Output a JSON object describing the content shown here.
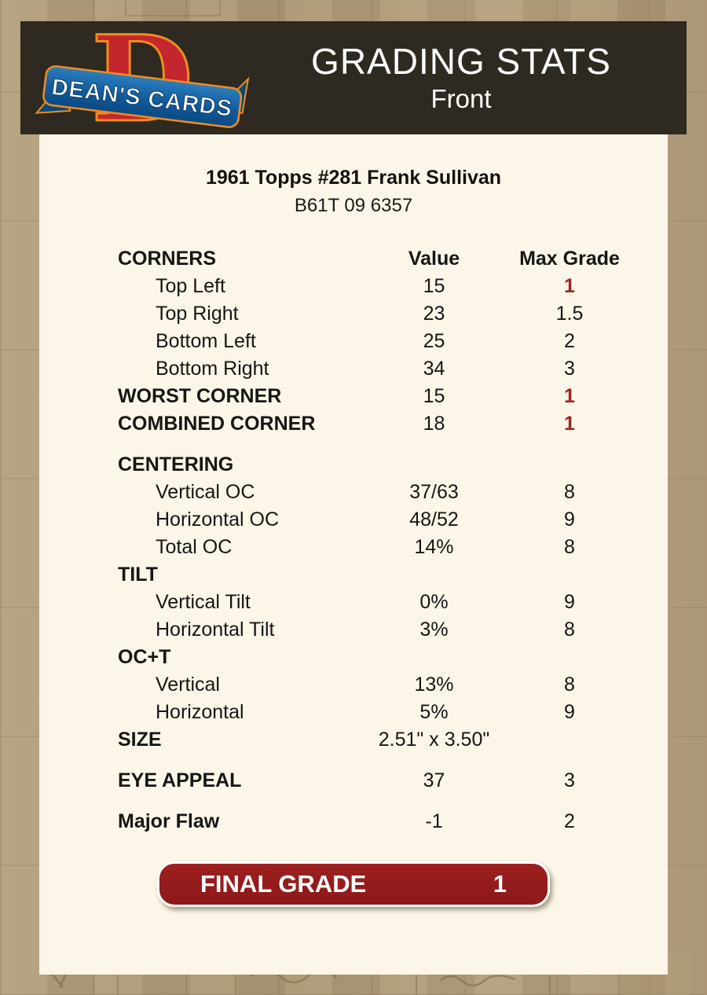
{
  "header": {
    "title": "GRADING STATS",
    "front_label": "Front",
    "logo": {
      "monogram": "D",
      "brand": "DEAN'S CARDS"
    }
  },
  "card": {
    "title": "1961 Topps #281 Frank Sullivan",
    "serial": "B61T 09 6357",
    "table": {
      "rows": [
        {
          "label": "CORNERS",
          "value": "Value",
          "max": "Max Grade",
          "style": "header"
        },
        {
          "label": "Top Left",
          "value": "15",
          "max": "1",
          "style": "item",
          "max_red": true
        },
        {
          "label": "Top Right",
          "value": "23",
          "max": "1.5",
          "style": "item"
        },
        {
          "label": "Bottom Left",
          "value": "25",
          "max": "2",
          "style": "item"
        },
        {
          "label": "Bottom Right",
          "value": "34",
          "max": "3",
          "style": "item"
        },
        {
          "label": "WORST CORNER",
          "value": "15",
          "max": "1",
          "style": "section",
          "max_red": true
        },
        {
          "label": "COMBINED CORNER",
          "value": "18",
          "max": "1",
          "style": "section",
          "max_red": true
        },
        {
          "spacer": true
        },
        {
          "label": "CENTERING",
          "value": "",
          "max": "",
          "style": "section"
        },
        {
          "label": "Vertical OC",
          "value": "37/63",
          "max": "8",
          "style": "item"
        },
        {
          "label": "Horizontal OC",
          "value": "48/52",
          "max": "9",
          "style": "item"
        },
        {
          "label": "Total OC",
          "value": "14%",
          "max": "8",
          "style": "item"
        },
        {
          "label": "TILT",
          "value": "",
          "max": "",
          "style": "section"
        },
        {
          "label": "Vertical Tilt",
          "value": "0%",
          "max": "9",
          "style": "item"
        },
        {
          "label": "Horizontal Tilt",
          "value": "3%",
          "max": "8",
          "style": "item"
        },
        {
          "label": "OC+T",
          "value": "",
          "max": "",
          "style": "section"
        },
        {
          "label": "Vertical",
          "value": "13%",
          "max": "8",
          "style": "item"
        },
        {
          "label": "Horizontal",
          "value": "5%",
          "max": "9",
          "style": "item"
        },
        {
          "label": "SIZE",
          "value": "2.51\" x 3.50\"",
          "max": "",
          "style": "section"
        },
        {
          "spacer": true
        },
        {
          "label": "EYE APPEAL",
          "value": "37",
          "max": "3",
          "style": "section"
        },
        {
          "spacer": true
        },
        {
          "label": "Major Flaw",
          "value": "-1",
          "max": "2",
          "style": "section"
        }
      ]
    },
    "final_grade": {
      "label": "FINAL GRADE",
      "value": "1"
    }
  },
  "colors": {
    "page_background": "#b09c7a",
    "header_background": "#2e2921",
    "card_background": "#fbf6e7",
    "accent_red": "#9a2425",
    "button_red": "#931b1b",
    "logo_red": "#c4262e",
    "logo_orange": "#ee8d1e",
    "logo_blue": "#1065a8",
    "text_color": "#161616"
  }
}
